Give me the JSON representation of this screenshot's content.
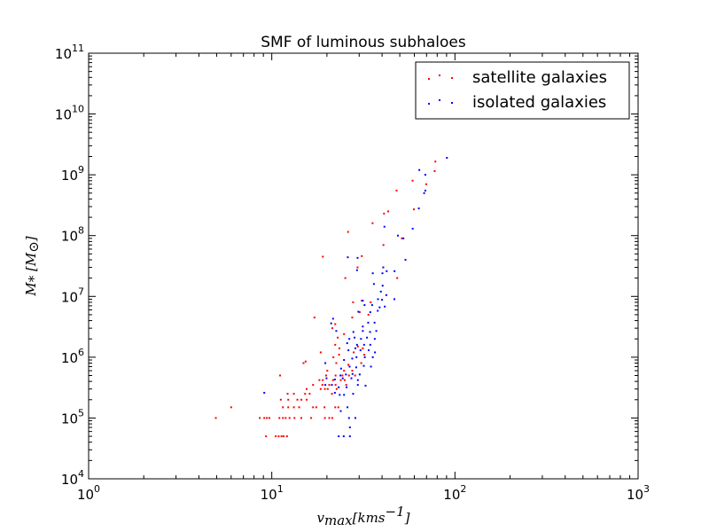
{
  "chart_data": {
    "type": "scatter",
    "title": "SMF of luminous subhaloes",
    "xlabel": "v_max [kms^-1]",
    "ylabel": "M_* [M_⊙]",
    "xscale": "log",
    "yscale": "log",
    "xlim": [
      1,
      1000
    ],
    "ylim": [
      10000,
      100000000000
    ],
    "x_ticks": [
      1,
      10,
      100,
      1000
    ],
    "x_tick_labels": [
      "10^0",
      "10^1",
      "10^2",
      "10^3"
    ],
    "y_ticks": [
      10000,
      100000,
      1000000,
      10000000,
      100000000,
      1000000000,
      10000000000,
      100000000000
    ],
    "y_tick_labels": [
      "10^4",
      "10^5",
      "10^6",
      "10^7",
      "10^8",
      "10^9",
      "10^10",
      "10^11"
    ],
    "grid": false,
    "legend_position": "top-right",
    "series": [
      {
        "name": "satellite galaxies",
        "color": "#ff0000",
        "points": [
          [
            4.95,
            100000
          ],
          [
            6,
            150000
          ],
          [
            8.6,
            100000
          ],
          [
            9.1,
            100000
          ],
          [
            9.4,
            100000
          ],
          [
            9.7,
            100000
          ],
          [
            9.3,
            50000
          ],
          [
            10.5,
            50000
          ],
          [
            10.9,
            50000
          ],
          [
            11.3,
            50000
          ],
          [
            11.6,
            50000
          ],
          [
            12.1,
            50000
          ],
          [
            11,
            100000
          ],
          [
            11.5,
            100000
          ],
          [
            11.9,
            100000
          ],
          [
            12.5,
            100000
          ],
          [
            13.3,
            100000
          ],
          [
            14.5,
            100000
          ],
          [
            16.4,
            100000
          ],
          [
            19.5,
            100000
          ],
          [
            20.6,
            100000
          ],
          [
            21.4,
            100000
          ],
          [
            11.5,
            150000
          ],
          [
            12.3,
            150000
          ],
          [
            13.2,
            150000
          ],
          [
            14.1,
            150000
          ],
          [
            16.8,
            150000
          ],
          [
            17.5,
            150000
          ],
          [
            19.4,
            150000
          ],
          [
            22.2,
            150000
          ],
          [
            23.1,
            150000
          ],
          [
            11.2,
            200000
          ],
          [
            12.3,
            200000
          ],
          [
            13.8,
            200000
          ],
          [
            14.5,
            200000
          ],
          [
            15.5,
            200000
          ],
          [
            12.2,
            250000
          ],
          [
            13.2,
            250000
          ],
          [
            15.2,
            250000
          ],
          [
            16.1,
            250000
          ],
          [
            21.3,
            250000
          ],
          [
            15.5,
            300000
          ],
          [
            18.5,
            300000
          ],
          [
            19.5,
            300000
          ],
          [
            20.2,
            300000
          ],
          [
            22.6,
            300000
          ],
          [
            16.8,
            350000
          ],
          [
            18.9,
            350000
          ],
          [
            20.6,
            350000
          ],
          [
            22.3,
            350000
          ],
          [
            25.5,
            350000
          ],
          [
            18.2,
            420000
          ],
          [
            19,
            420000
          ],
          [
            21.6,
            420000
          ],
          [
            23.8,
            420000
          ],
          [
            25,
            420000
          ],
          [
            11.1,
            500000
          ],
          [
            19.8,
            500000
          ],
          [
            22.3,
            500000
          ],
          [
            24.3,
            500000
          ],
          [
            26.4,
            500000
          ],
          [
            28.5,
            500000
          ],
          [
            20.1,
            600000
          ],
          [
            24.8,
            600000
          ],
          [
            27.5,
            600000
          ],
          [
            14.9,
            800000
          ],
          [
            15.3,
            850000
          ],
          [
            22.5,
            800000
          ],
          [
            26.2,
            750000
          ],
          [
            30.8,
            800000
          ],
          [
            18.5,
            1200000
          ],
          [
            21.7,
            1000000
          ],
          [
            23.3,
            1100000
          ],
          [
            28,
            1200000
          ],
          [
            32,
            1100000
          ],
          [
            22.2,
            1600000
          ],
          [
            23.4,
            1400000
          ],
          [
            29.5,
            1500000
          ],
          [
            31.4,
            1400000
          ],
          [
            22.9,
            2100000
          ],
          [
            24.8,
            2400000
          ],
          [
            21.4,
            3000000
          ],
          [
            22.2,
            3500000
          ],
          [
            17.1,
            4500000
          ],
          [
            27.5,
            4500000
          ],
          [
            30.2,
            5500000
          ],
          [
            33.7,
            5000000
          ],
          [
            27.8,
            8000000
          ],
          [
            31,
            8500000
          ],
          [
            34.7,
            8000000
          ],
          [
            25.2,
            20000000
          ],
          [
            48.4,
            20000000
          ],
          [
            19,
            45000000
          ],
          [
            31,
            46000000
          ],
          [
            29.4,
            30000000
          ],
          [
            40.7,
            70000000
          ],
          [
            51.3,
            90000000
          ],
          [
            26.1,
            115000000
          ],
          [
            35.5,
            160000000
          ],
          [
            41,
            230000000
          ],
          [
            43.2,
            250000000
          ],
          [
            59.7,
            270000000
          ],
          [
            48,
            550000000
          ],
          [
            58.7,
            800000000
          ],
          [
            69.7,
            700000000
          ],
          [
            77.5,
            1150000000
          ],
          [
            78.2,
            1650000000
          ]
        ]
      },
      {
        "name": "isolated galaxies",
        "color": "#0000ff",
        "points": [
          [
            23.2,
            50000
          ],
          [
            24.7,
            50000
          ],
          [
            26.7,
            50000
          ],
          [
            26.7,
            70000
          ],
          [
            26.4,
            100000
          ],
          [
            28.6,
            100000
          ],
          [
            23.8,
            130000
          ],
          [
            25.9,
            150000
          ],
          [
            9.1,
            260000
          ],
          [
            22.1,
            260000
          ],
          [
            23.5,
            240000
          ],
          [
            24.8,
            240000
          ],
          [
            27.8,
            250000
          ],
          [
            19.6,
            350000
          ],
          [
            21.3,
            350000
          ],
          [
            23.2,
            320000
          ],
          [
            25.6,
            320000
          ],
          [
            29.5,
            350000
          ],
          [
            32.5,
            340000
          ],
          [
            19.9,
            450000
          ],
          [
            22.1,
            430000
          ],
          [
            24.4,
            450000
          ],
          [
            27.2,
            450000
          ],
          [
            29.5,
            420000
          ],
          [
            23.7,
            500000
          ],
          [
            25.4,
            520000
          ],
          [
            27.6,
            530000
          ],
          [
            30.2,
            520000
          ],
          [
            23.9,
            650000
          ],
          [
            26.6,
            700000
          ],
          [
            28.9,
            680000
          ],
          [
            31.8,
            720000
          ],
          [
            34.8,
            700000
          ],
          [
            19.6,
            800000
          ],
          [
            24.8,
            900000
          ],
          [
            27.5,
            950000
          ],
          [
            29,
            1000000
          ],
          [
            32.2,
            1000000
          ],
          [
            35.6,
            1000000
          ],
          [
            26.2,
            1300000
          ],
          [
            28.6,
            1400000
          ],
          [
            30.5,
            1300000
          ],
          [
            33.8,
            1300000
          ],
          [
            36.6,
            1200000
          ],
          [
            25.8,
            1700000
          ],
          [
            29.2,
            1600000
          ],
          [
            31.9,
            1600000
          ],
          [
            34.5,
            1600000
          ],
          [
            26.5,
            2000000
          ],
          [
            28.3,
            2100000
          ],
          [
            30.7,
            2000000
          ],
          [
            33.1,
            2100000
          ],
          [
            36.5,
            2000000
          ],
          [
            22.5,
            2700000
          ],
          [
            27.9,
            2600000
          ],
          [
            31.4,
            2700000
          ],
          [
            34.4,
            2600000
          ],
          [
            37.2,
            2700000
          ],
          [
            21.1,
            3600000
          ],
          [
            31.4,
            3200000
          ],
          [
            33.6,
            3700000
          ],
          [
            36.4,
            3700000
          ],
          [
            21.6,
            4300000
          ],
          [
            29.7,
            5600000
          ],
          [
            34.5,
            5500000
          ],
          [
            37.9,
            5800000
          ],
          [
            32.1,
            7200000
          ],
          [
            35.3,
            7200000
          ],
          [
            38.8,
            6600000
          ],
          [
            41.4,
            6800000
          ],
          [
            31.4,
            8500000
          ],
          [
            38,
            9000000
          ],
          [
            40,
            8800000
          ],
          [
            46.7,
            9000000
          ],
          [
            39.4,
            12000000
          ],
          [
            42.2,
            10500000
          ],
          [
            36.1,
            16000000
          ],
          [
            40.3,
            15000000
          ],
          [
            35.6,
            24000000
          ],
          [
            40.2,
            24000000
          ],
          [
            42.4,
            26000000
          ],
          [
            46.8,
            26000000
          ],
          [
            29.2,
            27000000
          ],
          [
            40.6,
            30000000
          ],
          [
            53.7,
            40000000
          ],
          [
            26,
            44000000
          ],
          [
            29.4,
            43000000
          ],
          [
            48.8,
            100000000
          ],
          [
            52.3,
            90000000
          ],
          [
            58.8,
            130000000
          ],
          [
            41.2,
            140000000
          ],
          [
            63.5,
            280000000
          ],
          [
            68.9,
            550000000
          ],
          [
            67.9,
            500000000
          ],
          [
            68.9,
            1000000000
          ],
          [
            63.9,
            1200000000
          ],
          [
            90.4,
            1900000000
          ]
        ]
      }
    ]
  }
}
